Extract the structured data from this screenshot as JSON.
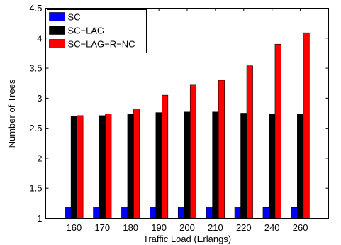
{
  "chart_data": {
    "type": "bar",
    "title": "",
    "xlabel": "Traffic Load (Erlangs)",
    "ylabel": "Number of Trees",
    "categories": [
      "160",
      "170",
      "180",
      "190",
      "200",
      "210",
      "220",
      "240",
      "260"
    ],
    "ylim": [
      1,
      4.5
    ],
    "yticks": [
      "1",
      "1.5",
      "2",
      "2.5",
      "3",
      "3.5",
      "4",
      "4.5"
    ],
    "grid": false,
    "legend_position": "top-left",
    "series": [
      {
        "name": "SC",
        "color": "#0000ff",
        "values": [
          1.19,
          1.19,
          1.19,
          1.19,
          1.19,
          1.19,
          1.19,
          1.18,
          1.18
        ]
      },
      {
        "name": "SC−LAG",
        "color": "#000000",
        "values": [
          2.7,
          2.71,
          2.73,
          2.76,
          2.77,
          2.77,
          2.75,
          2.74,
          2.74
        ]
      },
      {
        "name": "SC−LAG−R−NC",
        "color": "#ff0000",
        "values": [
          2.71,
          2.74,
          2.82,
          3.05,
          3.23,
          3.3,
          3.54,
          3.9,
          4.09
        ]
      }
    ]
  }
}
